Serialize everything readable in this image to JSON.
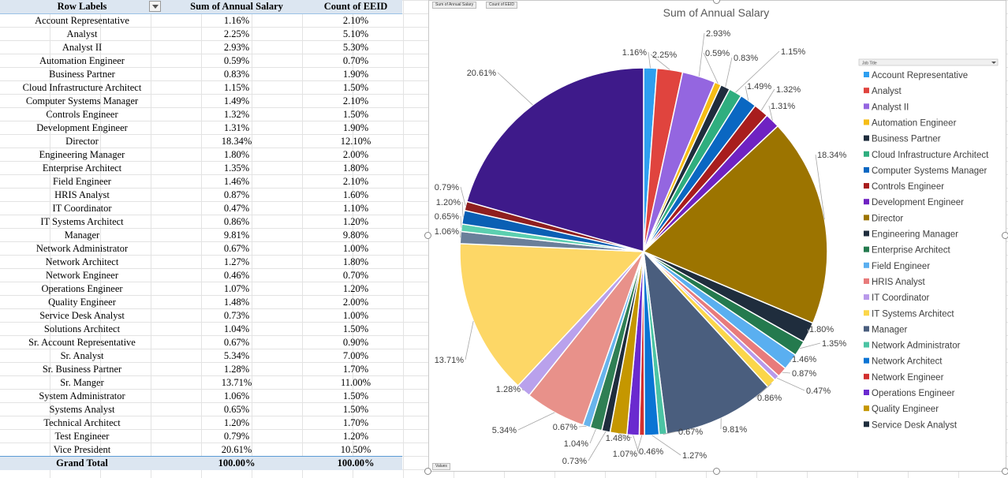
{
  "pivot": {
    "headers": [
      "Row Labels",
      "Sum of Annual Salary",
      "Count of EEID"
    ],
    "rows": [
      [
        "Account Representative",
        "1.16%",
        "2.10%"
      ],
      [
        "Analyst",
        "2.25%",
        "5.10%"
      ],
      [
        "Analyst II",
        "2.93%",
        "5.30%"
      ],
      [
        "Automation Engineer",
        "0.59%",
        "0.70%"
      ],
      [
        "Business Partner",
        "0.83%",
        "1.90%"
      ],
      [
        "Cloud Infrastructure Architect",
        "1.15%",
        "1.50%"
      ],
      [
        "Computer Systems Manager",
        "1.49%",
        "2.10%"
      ],
      [
        "Controls Engineer",
        "1.32%",
        "1.50%"
      ],
      [
        "Development Engineer",
        "1.31%",
        "1.90%"
      ],
      [
        "Director",
        "18.34%",
        "12.10%"
      ],
      [
        "Engineering Manager",
        "1.80%",
        "2.00%"
      ],
      [
        "Enterprise Architect",
        "1.35%",
        "1.80%"
      ],
      [
        "Field Engineer",
        "1.46%",
        "2.10%"
      ],
      [
        "HRIS Analyst",
        "0.87%",
        "1.60%"
      ],
      [
        "IT Coordinator",
        "0.47%",
        "1.10%"
      ],
      [
        "IT Systems Architect",
        "0.86%",
        "1.20%"
      ],
      [
        "Manager",
        "9.81%",
        "9.80%"
      ],
      [
        "Network Administrator",
        "0.67%",
        "1.00%"
      ],
      [
        "Network Architect",
        "1.27%",
        "1.80%"
      ],
      [
        "Network Engineer",
        "0.46%",
        "0.70%"
      ],
      [
        "Operations Engineer",
        "1.07%",
        "1.20%"
      ],
      [
        "Quality Engineer",
        "1.48%",
        "2.00%"
      ],
      [
        "Service Desk Analyst",
        "0.73%",
        "1.00%"
      ],
      [
        "Solutions Architect",
        "1.04%",
        "1.50%"
      ],
      [
        "Sr. Account Representative",
        "0.67%",
        "0.90%"
      ],
      [
        "Sr. Analyst",
        "5.34%",
        "7.00%"
      ],
      [
        "Sr. Business Partner",
        "1.28%",
        "1.70%"
      ],
      [
        "Sr. Manger",
        "13.71%",
        "11.00%"
      ],
      [
        "System Administrator",
        "1.06%",
        "1.50%"
      ],
      [
        "Systems Analyst",
        "0.65%",
        "1.50%"
      ],
      [
        "Technical Architect",
        "1.20%",
        "1.70%"
      ],
      [
        "Test Engineer",
        "0.79%",
        "1.20%"
      ],
      [
        "Vice President",
        "20.61%",
        "10.50%"
      ]
    ],
    "total": [
      "Grand Total",
      "100.00%",
      "100.00%"
    ]
  },
  "chart_field_buttons": [
    "Sum of Annual Salary",
    "Count of EEID"
  ],
  "values_button": "Values",
  "legend_filter_label": "Job Title",
  "chart_data": {
    "type": "pie",
    "title": "Sum of Annual Salary",
    "legend_position": "right",
    "categories": [
      "Account Representative",
      "Analyst",
      "Analyst II",
      "Automation Engineer",
      "Business Partner",
      "Cloud Infrastructure Architect",
      "Computer Systems Manager",
      "Controls Engineer",
      "Development Engineer",
      "Director",
      "Engineering Manager",
      "Enterprise Architect",
      "Field Engineer",
      "HRIS Analyst",
      "IT Coordinator",
      "IT Systems Architect",
      "Manager",
      "Network Administrator",
      "Network Architect",
      "Network Engineer",
      "Operations Engineer",
      "Quality Engineer",
      "Service Desk Analyst",
      "Solutions Architect",
      "Sr. Account Representative",
      "Sr. Analyst",
      "Sr. Business Partner",
      "Sr. Manger",
      "System Administrator",
      "Systems Analyst",
      "Technical Architect",
      "Test Engineer",
      "Vice President"
    ],
    "values": [
      1.16,
      2.25,
      2.93,
      0.59,
      0.83,
      1.15,
      1.49,
      1.32,
      1.31,
      18.34,
      1.8,
      1.35,
      1.46,
      0.87,
      0.47,
      0.86,
      9.81,
      0.67,
      1.27,
      0.46,
      1.07,
      1.48,
      0.73,
      1.04,
      0.67,
      5.34,
      1.28,
      13.71,
      1.06,
      0.65,
      1.2,
      0.79,
      20.61
    ],
    "labels": [
      "1.16%",
      "2.25%",
      "2.93%",
      "0.59%",
      "0.83%",
      "1.15%",
      "1.49%",
      "1.32%",
      "1.31%",
      "18.34%",
      "1.80%",
      "1.35%",
      "1.46%",
      "0.87%",
      "0.47%",
      "0.86%",
      "9.81%",
      "0.67%",
      "1.27%",
      "0.46%",
      "1.07%",
      "1.48%",
      "0.73%",
      "1.04%",
      "0.67%",
      "5.34%",
      "1.28%",
      "13.71%",
      "1.06%",
      "0.65%",
      "1.20%",
      "0.79%",
      "20.61%"
    ],
    "colors": [
      "#2e9ff0",
      "#e0443e",
      "#9466e0",
      "#f6bd16",
      "#1f2d3d",
      "#2fae7f",
      "#0a67c2",
      "#a81d1d",
      "#6f22c2",
      "#9c7400",
      "#1f2d3d",
      "#247a4e",
      "#5aaff0",
      "#e87b7b",
      "#b899ea",
      "#fbd64a",
      "#4a5e7e",
      "#4cc4a4",
      "#0a74d4",
      "#d2302f",
      "#6a2acf",
      "#c59700",
      "#1f2d3d",
      "#2f7f54",
      "#68b4ec",
      "#e8918a",
      "#b9a1ec",
      "#fdd766",
      "#6a7f9a",
      "#5ccfb0",
      "#0a5fb4",
      "#8f1f1f",
      "#3e1a8a"
    ],
    "legend_visible": [
      "Account Representative",
      "Analyst",
      "Analyst II",
      "Automation Engineer",
      "Business Partner",
      "Cloud Infrastructure Architect",
      "Computer Systems Manager",
      "Controls Engineer",
      "Development Engineer",
      "Director",
      "Engineering Manager",
      "Enterprise Architect",
      "Field Engineer",
      "HRIS Analyst",
      "IT Coordinator",
      "IT Systems Architect",
      "Manager",
      "Network Administrator",
      "Network Architect",
      "Network Engineer",
      "Operations Engineer",
      "Quality Engineer",
      "Service Desk Analyst"
    ]
  }
}
